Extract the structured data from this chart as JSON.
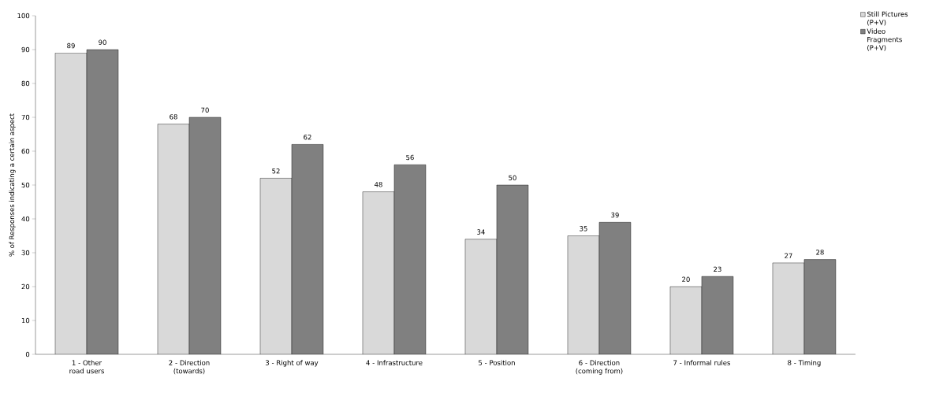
{
  "chart_data": {
    "type": "bar",
    "ylabel": "% of Responses indicating a certain aspect",
    "categories": [
      "1 - Other road users",
      "2 - Direction (towards)",
      "3 - Right of way",
      "4 - Infrastructure",
      "5 - Position",
      "6 - Direction (coming from)",
      "7 - Informal rules",
      "8 - Timing"
    ],
    "series": [
      {
        "name": "Still Pictures (P+V)",
        "color": "#d9d9d9",
        "values": [
          89,
          68,
          52,
          48,
          34,
          35,
          20,
          27
        ]
      },
      {
        "name": "Video Fragments (P+V)",
        "color": "#808080",
        "values": [
          90,
          70,
          62,
          56,
          50,
          39,
          23,
          28
        ]
      }
    ],
    "ylim": [
      0,
      100
    ],
    "yticks": [
      0,
      10,
      20,
      30,
      40,
      50,
      60,
      70,
      80,
      90,
      100
    ],
    "data_labels": true,
    "grid": false,
    "legend": "top right"
  }
}
